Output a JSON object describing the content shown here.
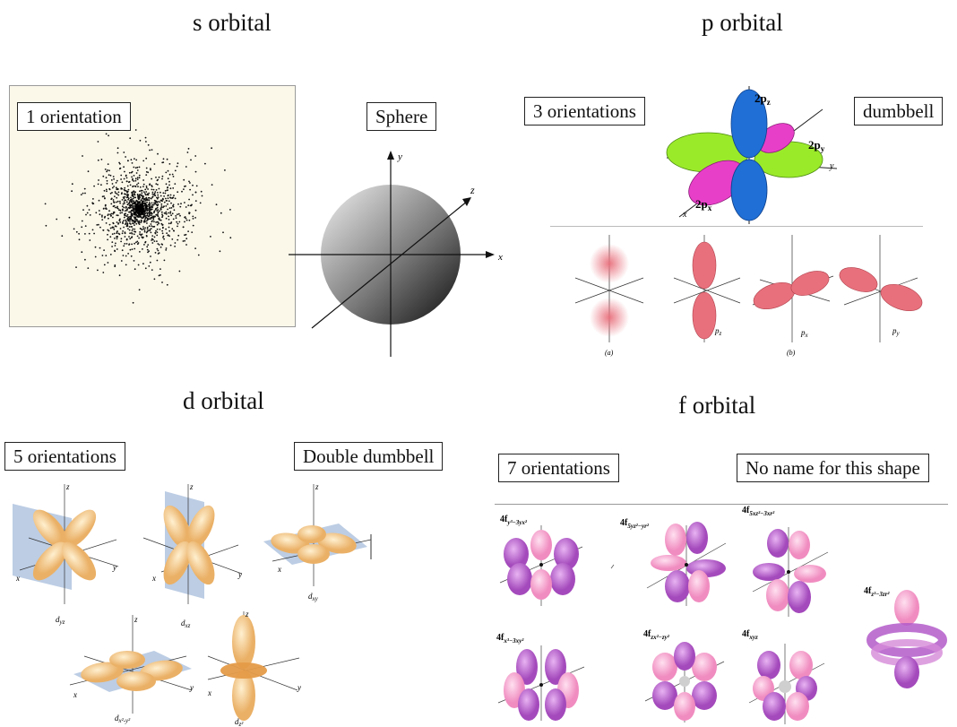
{
  "s_orbital": {
    "title": "s orbital",
    "orientation_label": "1 orientation",
    "shape_label": "Sphere",
    "axes": {
      "x": "x",
      "y": "y",
      "z": "z"
    }
  },
  "p_orbital": {
    "title": "p orbital",
    "orientation_label": "3 orientations",
    "shape_label": "dumbbell",
    "lobe_labels": {
      "pz": "2p",
      "pz_sub": "z",
      "py": "2p",
      "py_sub": "y",
      "px": "2p",
      "px_sub": "x"
    },
    "panel_captions": {
      "a": "(a)",
      "b": "(b)",
      "pz": "p",
      "pz_sub": "z",
      "px": "p",
      "px_sub": "x",
      "py": "p",
      "py_sub": "y"
    },
    "axes": {
      "x": "x",
      "y": "y",
      "z": "z"
    }
  },
  "d_orbital": {
    "title": "d orbital",
    "orientation_label": "5 orientations",
    "shape_label": "Double dumbbell",
    "captions": [
      "d",
      "d",
      "d",
      "d",
      "d"
    ],
    "caption_subs": [
      "yz",
      "xz",
      "xy",
      "x²-y²",
      "z²"
    ],
    "axes": {
      "x": "x",
      "y": "y",
      "z": "z"
    }
  },
  "f_orbital": {
    "title": "f orbital",
    "orientation_label": "7 orientations",
    "shape_label": "No name for this shape",
    "labels": [
      "4f",
      "4f",
      "4f",
      "4f",
      "4f",
      "4f",
      "4f"
    ],
    "label_subs": [
      "y³−3yx²",
      "5yz²−yr²",
      "5xz²−3xr²",
      "z³−3zr²",
      "x³−3xy²",
      "zx²−zy²",
      "xyz"
    ]
  },
  "colors": {
    "s_panel_bg": "#fbf8ea",
    "p_blue": "#1f6fd6",
    "p_green": "#9bea2a",
    "p_magenta": "#e83fc8",
    "p_red": "#e8707c",
    "d_gold": "#f2c07a",
    "d_plane": "#9fb8d8",
    "f_pink": "#f7a8cf",
    "f_violet": "#b35ac9"
  }
}
